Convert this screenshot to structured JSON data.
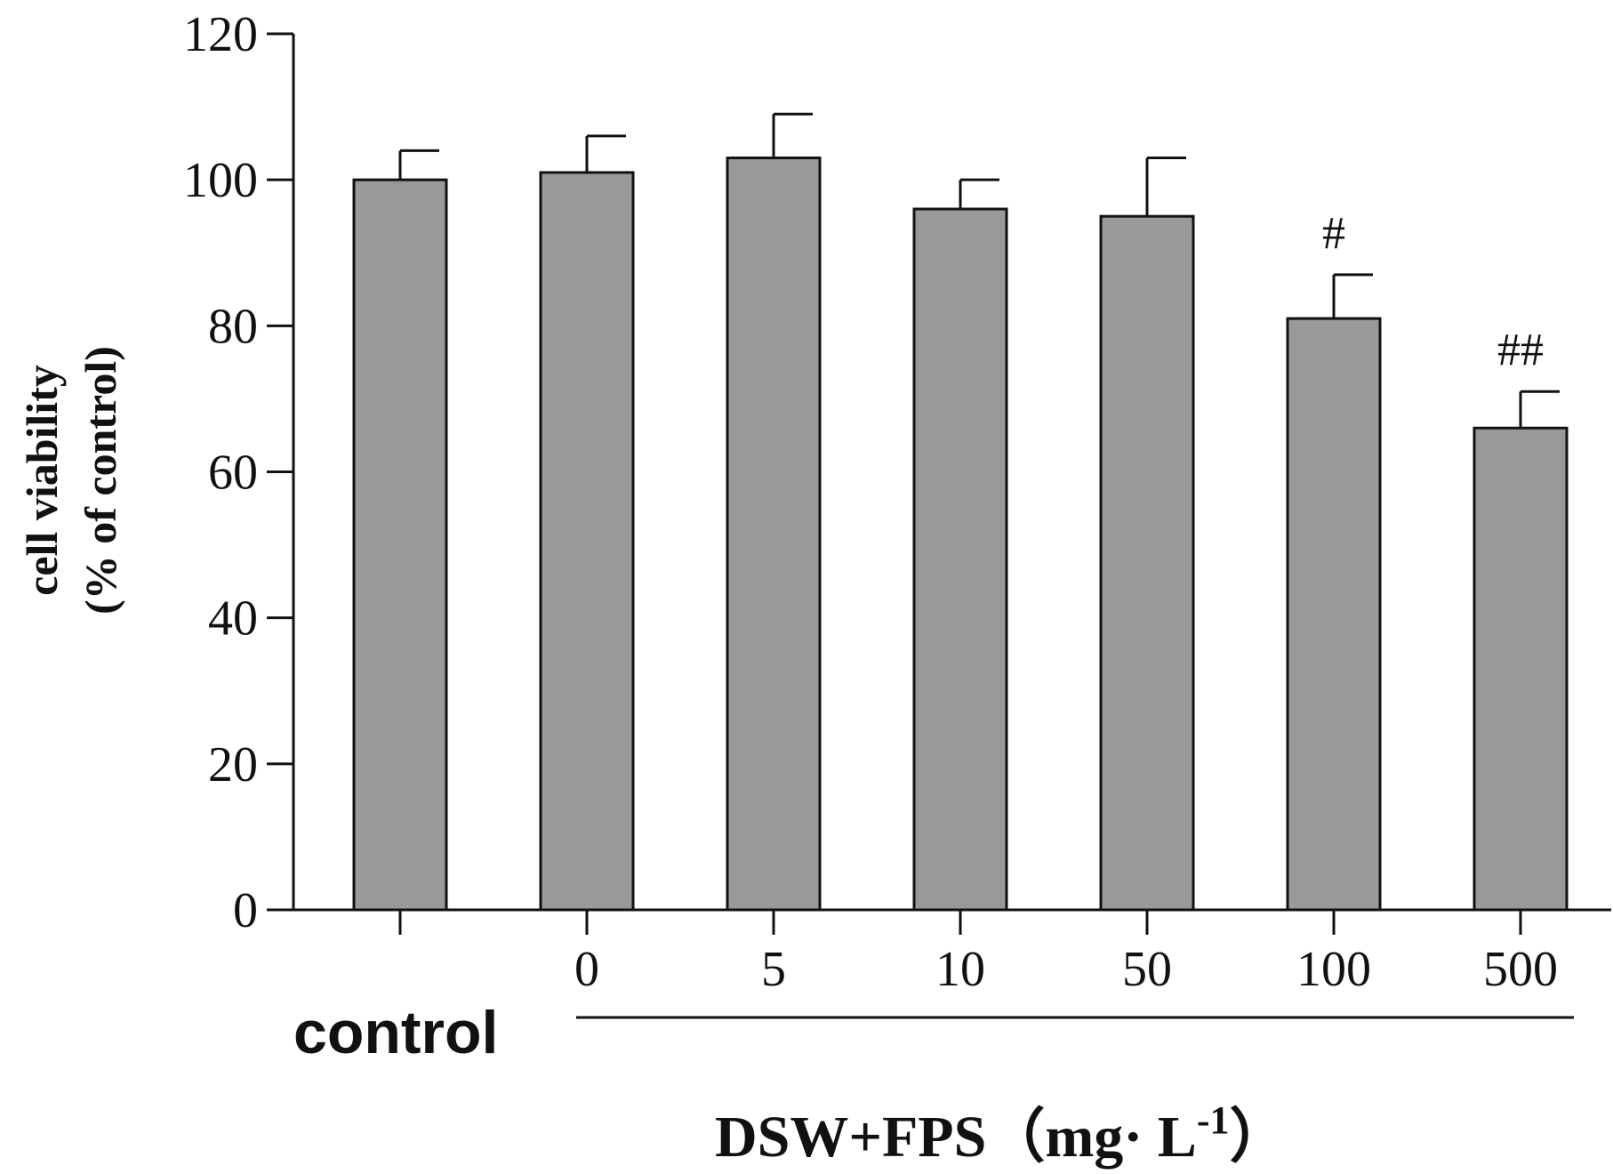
{
  "chart_data": {
    "type": "bar",
    "categories": [
      "control",
      "0",
      "5",
      "10",
      "50",
      "100",
      "500"
    ],
    "tick_labels": [
      "",
      "0",
      "5",
      "10",
      "50",
      "100",
      "500"
    ],
    "values": [
      100,
      101,
      103,
      96,
      95,
      81,
      66
    ],
    "errors": [
      4,
      5,
      6,
      4,
      8,
      6,
      5
    ],
    "significance": [
      "",
      "",
      "",
      "",
      "",
      "#",
      "##"
    ],
    "ylim": [
      0,
      120
    ],
    "yticks": [
      0,
      20,
      40,
      60,
      80,
      100,
      120
    ],
    "ylabel_line1": "cell viability",
    "ylabel_line2": "(% of control)",
    "group_label": "control",
    "xlabel_main": "DSW+FPS（mg· L",
    "xlabel_sup": "-1",
    "xlabel_end": "）",
    "bar_color": "#999999",
    "grid": false
  }
}
